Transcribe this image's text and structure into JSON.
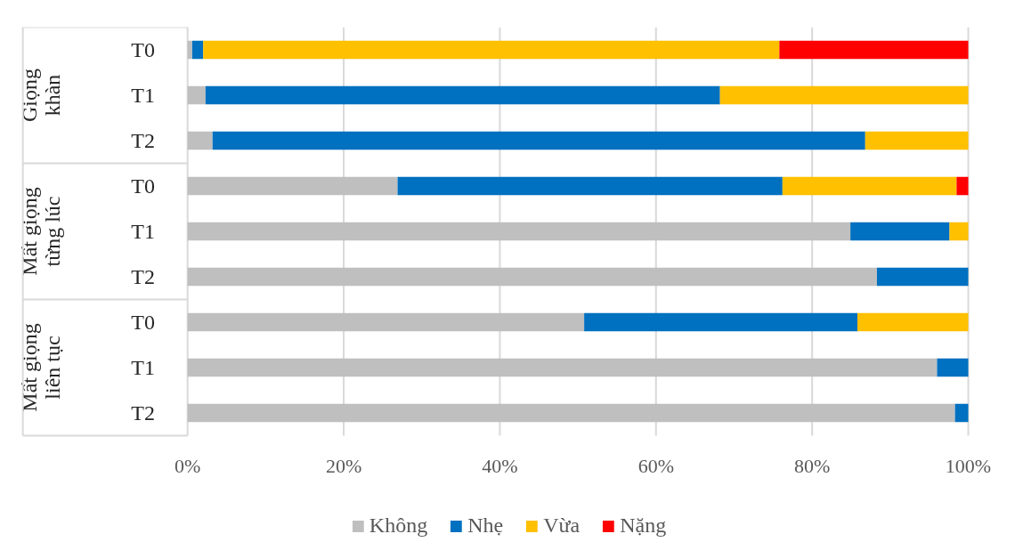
{
  "chart_data": {
    "type": "bar",
    "orientation": "horizontal",
    "stacked": true,
    "categories": [
      "T0",
      "T1",
      "T2",
      "T0",
      "T1",
      "T2",
      "T0",
      "T1",
      "T2"
    ],
    "series": [
      {
        "name": "Không",
        "color": "#bfbfbf",
        "values": [
          0.6,
          2.3,
          3.2,
          26.9,
          84.9,
          88.3,
          50.8,
          96.0,
          98.3
        ]
      },
      {
        "name": "Nhẹ",
        "color": "#0070c0",
        "values": [
          1.4,
          65.9,
          83.6,
          49.3,
          12.7,
          11.7,
          35.0,
          4.0,
          1.7
        ]
      },
      {
        "name": "Vừa",
        "color": "#ffc000",
        "values": [
          73.8,
          31.8,
          13.2,
          22.3,
          2.4,
          null,
          14.2,
          null,
          null
        ]
      },
      {
        "name": "Nặng",
        "color": "#ff0000",
        "values": [
          24.2,
          null,
          null,
          1.5,
          null,
          null,
          null,
          null,
          null
        ]
      }
    ],
    "annotations": [
      "Giọng\nkhàn",
      "Mất giọng\ntừng lúc",
      "Mất giọng\nliên tục"
    ],
    "xlim": [
      0,
      100
    ],
    "xticks": [
      {
        "value": 0,
        "label": "0%"
      },
      {
        "value": 20,
        "label": "20%"
      },
      {
        "value": 40,
        "label": "40%"
      },
      {
        "value": 60,
        "label": "60%"
      },
      {
        "value": 80,
        "label": "80%"
      },
      {
        "value": 100,
        "label": "100%"
      }
    ],
    "grid": "x",
    "legend": "bottom"
  }
}
